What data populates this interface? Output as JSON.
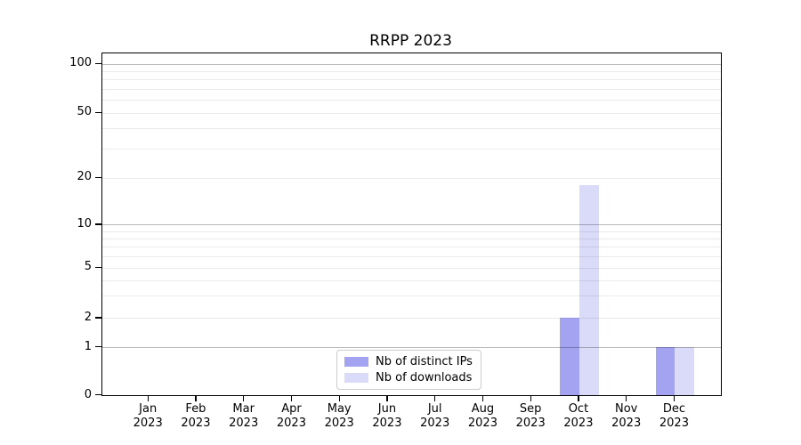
{
  "title": "RRPP 2023",
  "chart_data": {
    "type": "bar",
    "title": "RRPP 2023",
    "categories": [
      "Jan 2023",
      "Feb 2023",
      "Mar 2023",
      "Apr 2023",
      "May 2023",
      "Jun 2023",
      "Jul 2023",
      "Aug 2023",
      "Sep 2023",
      "Oct 2023",
      "Nov 2023",
      "Dec 2023"
    ],
    "series": [
      {
        "name": "Nb of distinct IPs",
        "color": "#a3a3f1",
        "values": [
          0,
          0,
          0,
          0,
          0,
          0,
          0,
          0,
          0,
          2,
          0,
          1
        ]
      },
      {
        "name": "Nb of downloads",
        "color": "#dadaf9",
        "values": [
          0,
          0,
          0,
          0,
          0,
          0,
          0,
          0,
          0,
          18,
          0,
          1
        ]
      }
    ],
    "yscale": "symlog",
    "yticks": [
      0,
      1,
      2,
      5,
      10,
      20,
      50,
      100
    ],
    "ylim": [
      0,
      116
    ],
    "xlabel": "",
    "ylabel": "",
    "grid": "horizontal, major and minor",
    "legend_position": "lower center"
  }
}
